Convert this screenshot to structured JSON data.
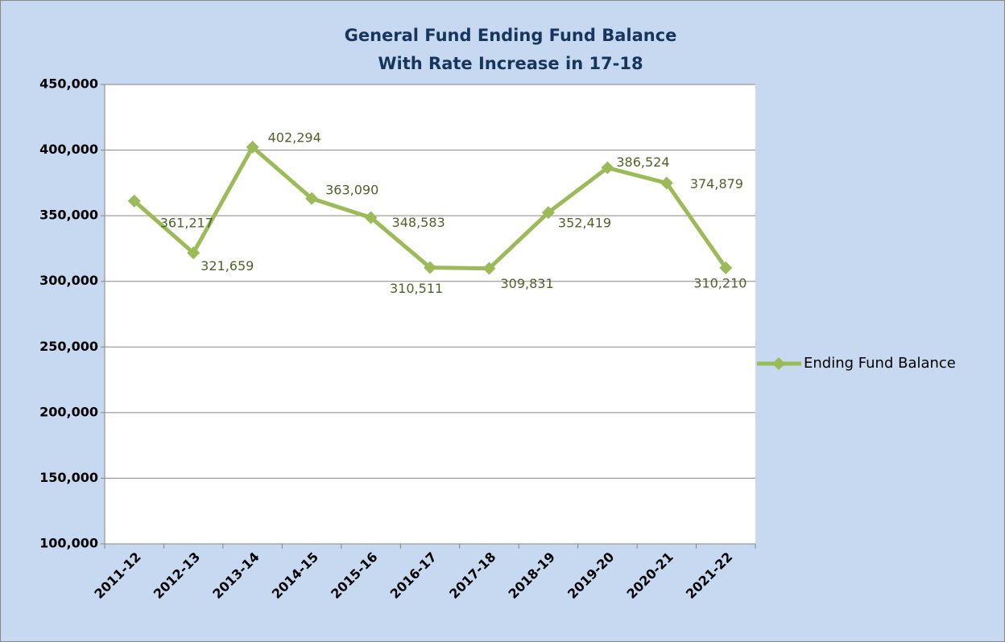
{
  "chart_data": {
    "type": "line",
    "title": "General Fund Ending Fund Balance",
    "subtitle": "With Rate Increase in 17-18",
    "categories": [
      "2011-12",
      "2012-13",
      "2013-14",
      "2014-15",
      "2015-16",
      "2016-17",
      "2017-18",
      "2018-19",
      "2019-20",
      "2020-21",
      "2021-22"
    ],
    "series": [
      {
        "name": "Ending Fund Balance",
        "color": "#9bbb59",
        "values": [
          361217,
          321659,
          402294,
          363090,
          348583,
          310511,
          309831,
          352419,
          386524,
          374879,
          310210
        ],
        "value_labels": [
          "361,217",
          "321,659",
          "402,294",
          "363,090",
          "348,583",
          "310,511",
          "309,831",
          "352,419",
          "386,524",
          "374,879",
          "310,210"
        ]
      }
    ],
    "ylim": [
      100000,
      450000
    ],
    "yticks": [
      {
        "value": 100000,
        "label": "100,000"
      },
      {
        "value": 150000,
        "label": "150,000"
      },
      {
        "value": 200000,
        "label": "200,000"
      },
      {
        "value": 250000,
        "label": "250,000"
      },
      {
        "value": 300000,
        "label": "300,000"
      },
      {
        "value": 350000,
        "label": "350,000"
      },
      {
        "value": 400000,
        "label": "400,000"
      },
      {
        "value": 450000,
        "label": "450,000"
      }
    ],
    "grid": true,
    "legend": "right"
  }
}
